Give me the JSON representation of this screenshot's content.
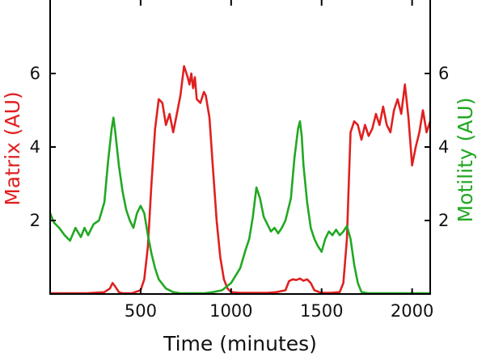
{
  "chart_data": {
    "type": "line",
    "xlabel": "Time (minutes)",
    "ylabel_left": "Matrix (AU)",
    "ylabel_right": "Motility (AU)",
    "xlim": [
      0,
      2100
    ],
    "ylim": [
      0,
      8
    ],
    "x_ticks": [
      500,
      1000,
      1500,
      2000
    ],
    "y_ticks": [
      2,
      4,
      6
    ],
    "grid": false,
    "colors": {
      "matrix": "#e02020",
      "motility": "#22a822",
      "axes": "#000000"
    },
    "series": [
      {
        "axis": "left",
        "color": "#e02020",
        "x": [
          0,
          100,
          200,
          300,
          330,
          345,
          360,
          380,
          400,
          450,
          500,
          520,
          540,
          560,
          580,
          600,
          620,
          640,
          660,
          680,
          700,
          720,
          740,
          760,
          770,
          780,
          790,
          800,
          810,
          830,
          850,
          860,
          880,
          900,
          920,
          940,
          960,
          980,
          1000,
          1050,
          1100,
          1150,
          1200,
          1250,
          1300,
          1320,
          1340,
          1360,
          1380,
          1400,
          1420,
          1440,
          1460,
          1500,
          1550,
          1600,
          1620,
          1640,
          1650,
          1660,
          1680,
          1700,
          1720,
          1740,
          1760,
          1780,
          1800,
          1820,
          1840,
          1860,
          1880,
          1900,
          1920,
          1940,
          1960,
          1980,
          2000,
          2020,
          2040,
          2060,
          2080,
          2100
        ],
        "values": [
          0.02,
          0.02,
          0.02,
          0.05,
          0.15,
          0.3,
          0.2,
          0.05,
          0.02,
          0.02,
          0.1,
          0.4,
          1.3,
          3.0,
          4.5,
          5.3,
          5.2,
          4.6,
          4.9,
          4.4,
          4.9,
          5.4,
          6.2,
          5.9,
          5.7,
          6.0,
          5.6,
          5.9,
          5.3,
          5.2,
          5.5,
          5.4,
          4.8,
          3.4,
          2.0,
          1.0,
          0.4,
          0.15,
          0.05,
          0.03,
          0.03,
          0.03,
          0.03,
          0.05,
          0.1,
          0.35,
          0.4,
          0.38,
          0.42,
          0.36,
          0.4,
          0.3,
          0.1,
          0.03,
          0.03,
          0.05,
          0.3,
          1.5,
          3.0,
          4.4,
          4.7,
          4.6,
          4.2,
          4.6,
          4.3,
          4.5,
          4.9,
          4.6,
          5.1,
          4.6,
          4.4,
          5.0,
          5.3,
          4.9,
          5.7,
          4.8,
          3.5,
          4.0,
          4.4,
          5.0,
          4.4,
          4.7
        ]
      },
      {
        "axis": "right",
        "color": "#22a822",
        "x": [
          0,
          20,
          50,
          80,
          110,
          140,
          170,
          190,
          210,
          240,
          270,
          300,
          320,
          340,
          350,
          360,
          380,
          400,
          420,
          440,
          460,
          480,
          500,
          520,
          540,
          560,
          580,
          600,
          640,
          680,
          720,
          760,
          800,
          850,
          900,
          950,
          1000,
          1050,
          1080,
          1100,
          1120,
          1140,
          1160,
          1180,
          1200,
          1220,
          1240,
          1260,
          1280,
          1300,
          1330,
          1350,
          1370,
          1380,
          1390,
          1400,
          1420,
          1440,
          1460,
          1480,
          1500,
          1520,
          1540,
          1560,
          1580,
          1600,
          1620,
          1640,
          1660,
          1680,
          1700,
          1720,
          1760,
          1800,
          1850,
          1900,
          2000,
          2100
        ],
        "values": [
          2.2,
          1.95,
          1.8,
          1.6,
          1.45,
          1.8,
          1.55,
          1.8,
          1.6,
          1.9,
          2.0,
          2.5,
          3.6,
          4.5,
          4.8,
          4.4,
          3.5,
          2.8,
          2.3,
          2.0,
          1.8,
          2.2,
          2.4,
          2.2,
          1.6,
          1.1,
          0.7,
          0.4,
          0.15,
          0.05,
          0.02,
          0.02,
          0.02,
          0.02,
          0.05,
          0.1,
          0.3,
          0.7,
          1.2,
          1.5,
          2.1,
          2.9,
          2.6,
          2.1,
          1.9,
          1.7,
          1.8,
          1.65,
          1.8,
          2.0,
          2.6,
          3.7,
          4.5,
          4.7,
          4.3,
          3.5,
          2.5,
          1.8,
          1.5,
          1.3,
          1.15,
          1.5,
          1.7,
          1.6,
          1.75,
          1.6,
          1.7,
          1.85,
          1.5,
          0.8,
          0.3,
          0.05,
          0.02,
          0.02,
          0.02,
          0.02,
          0.02,
          0.02
        ]
      }
    ]
  }
}
